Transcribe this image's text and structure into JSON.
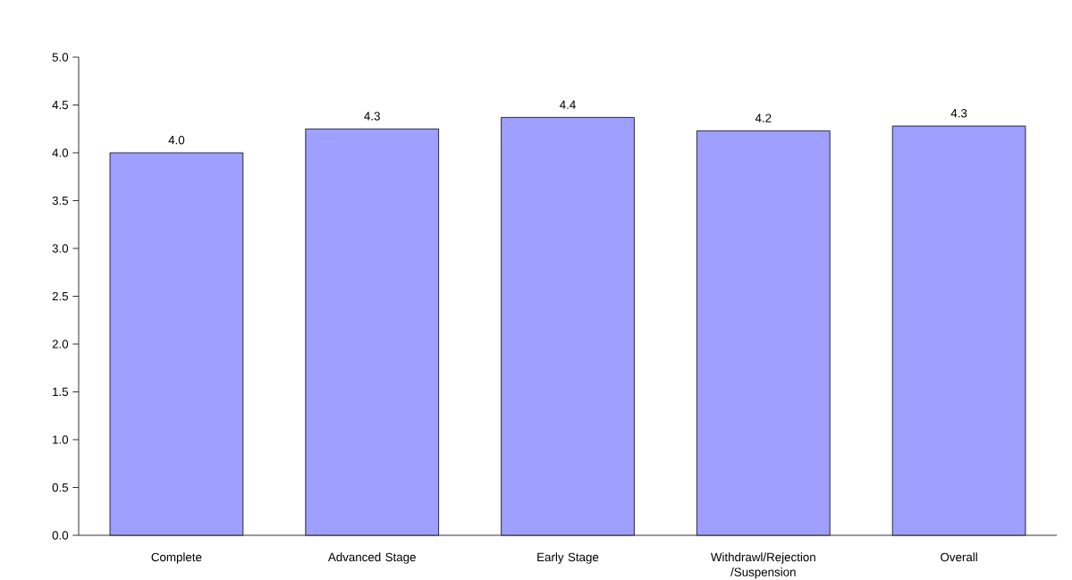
{
  "chart_data": {
    "type": "bar",
    "categories": [
      "Complete",
      "Advanced Stage",
      "Early Stage",
      "Withdrawl/Rejection /Suspension",
      "Overall"
    ],
    "values": [
      4.0,
      4.25,
      4.37,
      4.23,
      4.28
    ],
    "value_labels": [
      "4.0",
      "4.3",
      "4.4",
      "4.2",
      "4.3"
    ],
    "color": "#9f9fff",
    "ylim": [
      0,
      5
    ],
    "yticks": [
      {
        "value": 0,
        "label": "0.0"
      },
      {
        "value": 0.5,
        "label": "0.5"
      },
      {
        "value": 1,
        "label": "1.0"
      },
      {
        "value": 1.5,
        "label": "1.5"
      },
      {
        "value": 2,
        "label": "2.0"
      },
      {
        "value": 2.5,
        "label": "2.5"
      },
      {
        "value": 3,
        "label": "3.0"
      },
      {
        "value": 3.5,
        "label": "3.5"
      },
      {
        "value": 4,
        "label": "4.0"
      },
      {
        "value": 4.5,
        "label": "4.5"
      },
      {
        "value": 5,
        "label": "5.0"
      }
    ],
    "grid": false
  }
}
